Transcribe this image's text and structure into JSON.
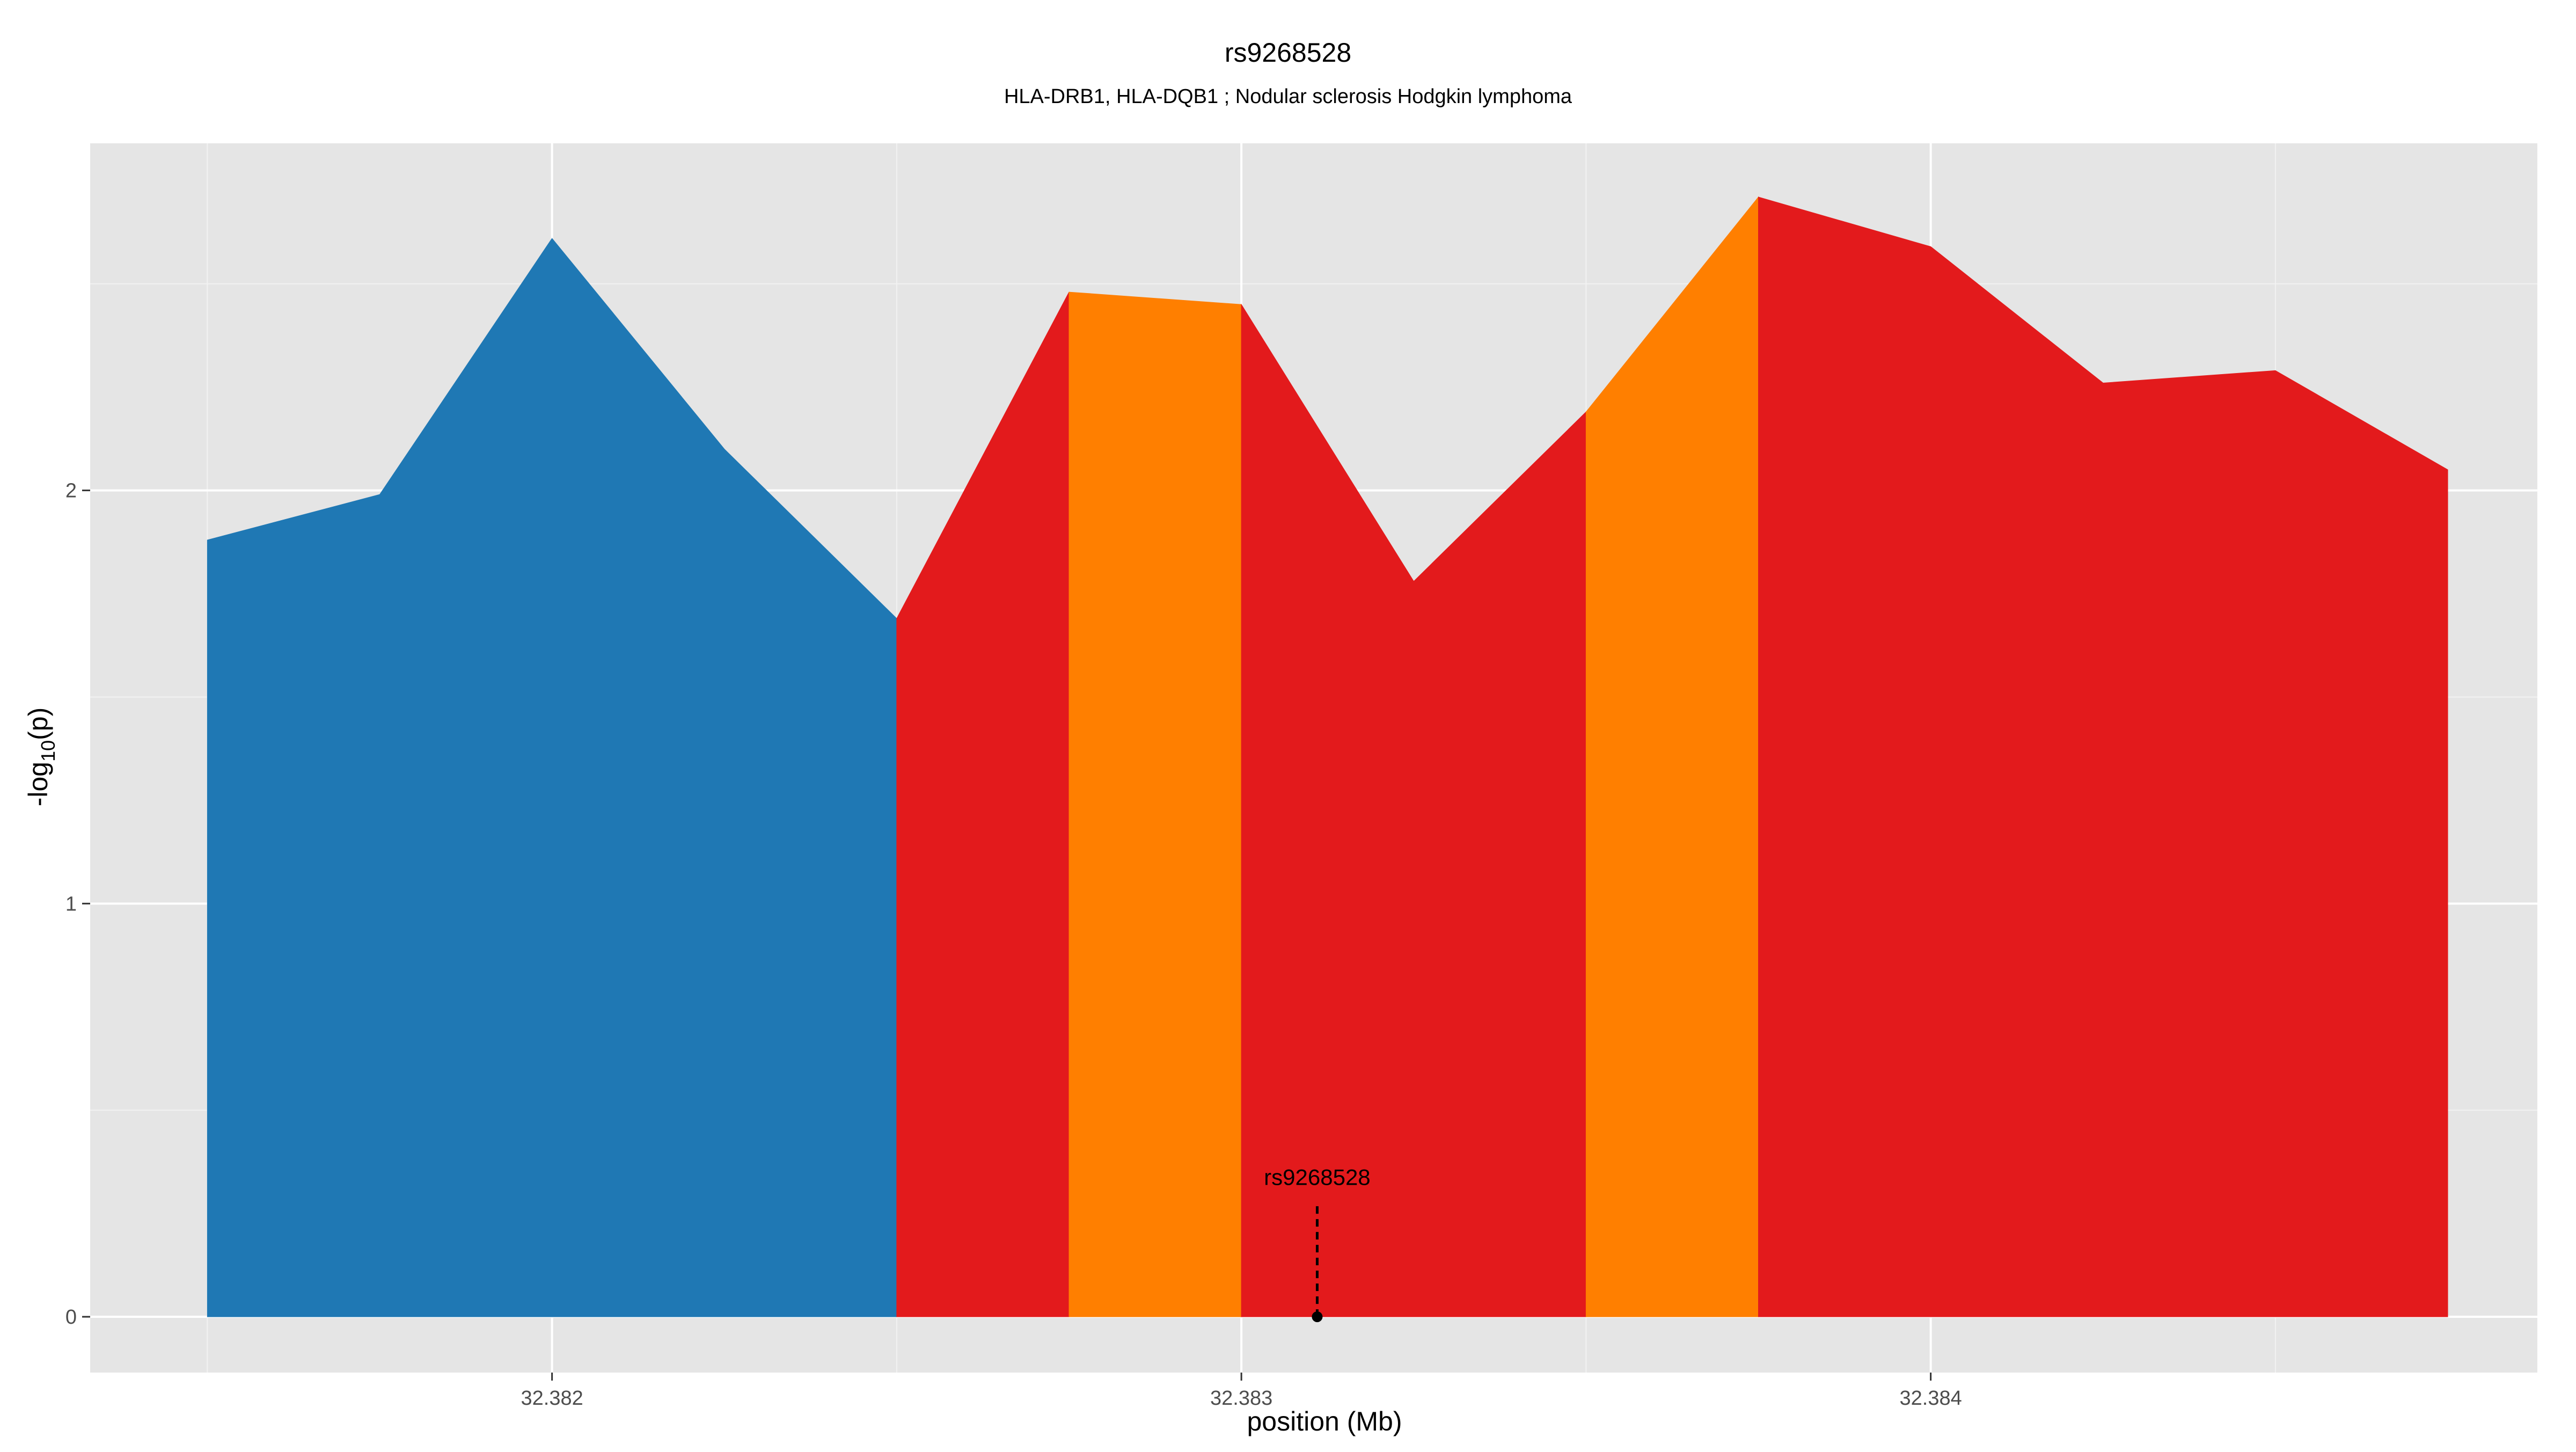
{
  "chart_data": {
    "type": "area",
    "title": "rs9268528",
    "subtitle": "HLA-DRB1, HLA-DQB1 ; Nodular sclerosis Hodgkin lymphoma",
    "xlabel": "position (Mb)",
    "ylabel": "-log10(p)",
    "ylabel_base": "-log",
    "ylabel_sub": "10",
    "ylabel_rest": "(p)",
    "xlim": [
      32.38133,
      32.38488
    ],
    "ylim": [
      -0.135,
      2.84
    ],
    "x_ticks": [
      {
        "value": 32.382,
        "label": "32.382"
      },
      {
        "value": 32.383,
        "label": "32.383"
      },
      {
        "value": 32.384,
        "label": "32.384"
      }
    ],
    "x_minor_ticks": [
      32.3815,
      32.3825,
      32.3835,
      32.3845
    ],
    "y_ticks": [
      {
        "value": 0,
        "label": "0"
      },
      {
        "value": 1,
        "label": "1"
      },
      {
        "value": 2,
        "label": "2"
      }
    ],
    "y_minor_ticks": [
      0.5,
      1.5,
      2.5
    ],
    "grid": true,
    "legend": "none",
    "points": [
      {
        "x": 32.3815,
        "y": 1.88
      },
      {
        "x": 32.38175,
        "y": 1.99
      },
      {
        "x": 32.382,
        "y": 2.61
      },
      {
        "x": 32.38225,
        "y": 2.1
      },
      {
        "x": 32.3825,
        "y": 1.69
      },
      {
        "x": 32.38275,
        "y": 2.48
      },
      {
        "x": 32.383,
        "y": 2.45
      },
      {
        "x": 32.38325,
        "y": 1.78
      },
      {
        "x": 32.3835,
        "y": 2.19
      },
      {
        "x": 32.38375,
        "y": 2.71
      },
      {
        "x": 32.384,
        "y": 2.59
      },
      {
        "x": 32.38425,
        "y": 2.26
      },
      {
        "x": 32.3845,
        "y": 2.29
      },
      {
        "x": 32.38475,
        "y": 2.05
      }
    ],
    "segments": [
      {
        "from": 32.3815,
        "to": 32.3825,
        "color": "#1f78b4"
      },
      {
        "from": 32.3825,
        "to": 32.38275,
        "color": "#e31a1c"
      },
      {
        "from": 32.38275,
        "to": 32.383,
        "color": "#ff7f00"
      },
      {
        "from": 32.383,
        "to": 32.3835,
        "color": "#e31a1c"
      },
      {
        "from": 32.3835,
        "to": 32.38375,
        "color": "#ff7f00"
      },
      {
        "from": 32.38375,
        "to": 32.38475,
        "color": "#e31a1c"
      }
    ],
    "snp": {
      "label": "rs9268528",
      "x": 32.38311,
      "y": 0,
      "line_top": 0.27
    }
  },
  "colors": {
    "panel_background": "#e5e5e5",
    "grid_major": "#ffffff",
    "grid_minor": "#f2f2f2",
    "tick_label": "#4d4d4d",
    "blue": "#1f78b4",
    "red": "#e31a1c",
    "orange": "#ff7f00",
    "text": "#000000"
  }
}
